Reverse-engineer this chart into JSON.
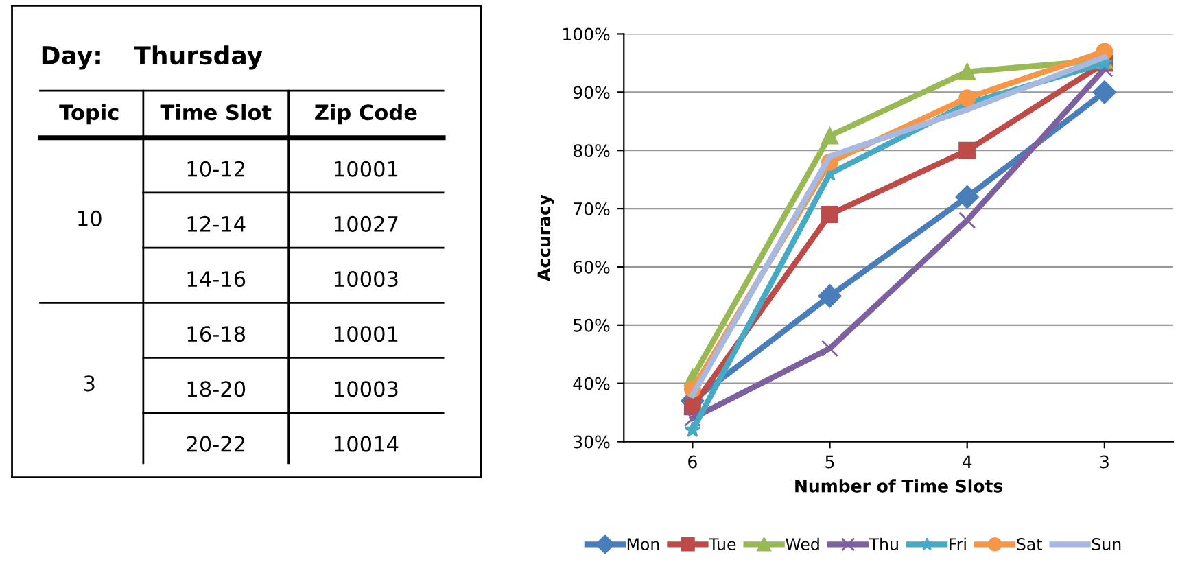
{
  "chart_data": [
    {
      "type": "other",
      "title": "Day:",
      "subtitle": "Thursday",
      "categories": [
        "Topic",
        "Time Slot",
        "Zip Code"
      ],
      "annotations": [
        "10",
        "3",
        "10-12",
        "12-14",
        "14-16",
        "16-18",
        "18-20",
        "20-22",
        "10001",
        "10027",
        "10003",
        "10001",
        "10003",
        "10014"
      ]
    },
    {
      "type": "line",
      "xlabel": "Number of Time Slots",
      "ylabel": "Accuracy",
      "categories": [
        "6",
        "5",
        "4",
        "3"
      ],
      "series": [
        {
          "name": "Mon",
          "color": "#4a7ebb",
          "marker": "diamond",
          "values": [
            37,
            55,
            72,
            90
          ]
        },
        {
          "name": "Tue",
          "color": "#be4b48",
          "marker": "square",
          "values": [
            36,
            69,
            80,
            95
          ]
        },
        {
          "name": "Wed",
          "color": "#98b954",
          "marker": "triangle",
          "values": [
            41,
            82.5,
            93.5,
            95.5
          ]
        },
        {
          "name": "Thu",
          "color": "#7d60a0",
          "marker": "cross",
          "values": [
            34,
            46,
            68,
            94
          ]
        },
        {
          "name": "Fri",
          "color": "#46aac5",
          "marker": "star",
          "values": [
            32,
            76,
            88,
            95
          ]
        },
        {
          "name": "Sat",
          "color": "#f79646",
          "marker": "circle",
          "values": [
            39,
            78,
            89,
            97
          ]
        },
        {
          "name": "Sun",
          "color": "#a7b9e0",
          "marker": "none",
          "values": [
            38,
            79,
            87,
            96
          ]
        }
      ],
      "ylim": [
        30,
        100
      ],
      "yticks": [
        {
          "value": 30,
          "label": "30%"
        },
        {
          "value": 40,
          "label": "40%"
        },
        {
          "value": 50,
          "label": "50%"
        },
        {
          "value": 60,
          "label": "60%"
        },
        {
          "value": 70,
          "label": "70%"
        },
        {
          "value": 80,
          "label": "80%"
        },
        {
          "value": 90,
          "label": "90%"
        },
        {
          "value": 100,
          "label": "100%"
        }
      ],
      "grid": "y",
      "legend": "bottom",
      "line_style": "solid"
    }
  ]
}
